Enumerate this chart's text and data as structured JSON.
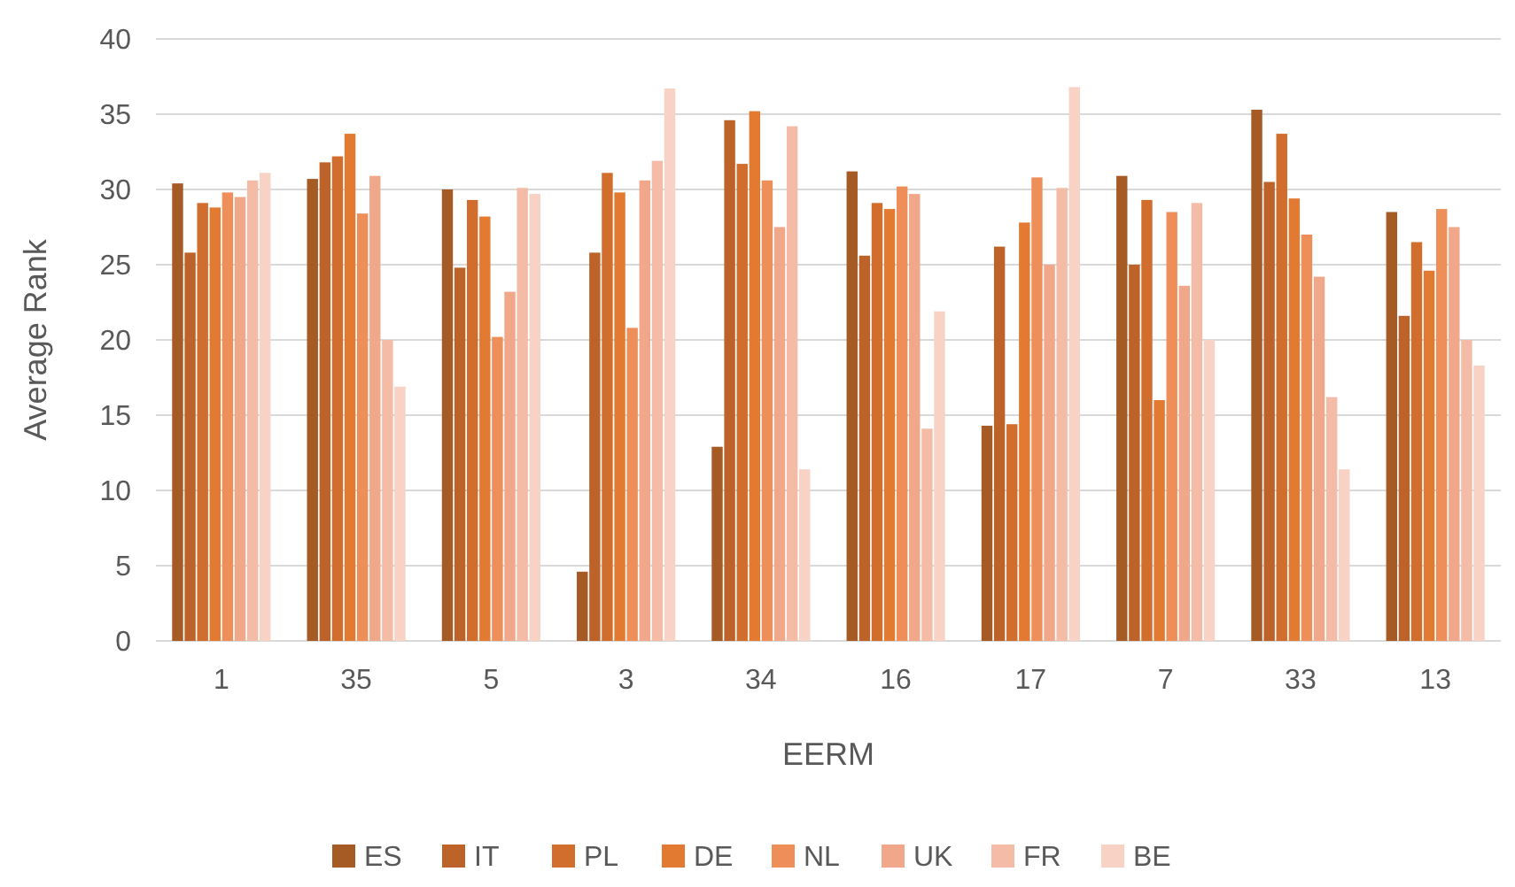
{
  "chart_data": {
    "type": "bar",
    "xlabel": "EERM",
    "ylabel": "Average Rank",
    "categories": [
      "1",
      "35",
      "5",
      "3",
      "34",
      "16",
      "17",
      "7",
      "33",
      "13"
    ],
    "ylim": [
      0,
      40
    ],
    "yticks": [
      0,
      5,
      10,
      15,
      20,
      25,
      30,
      35,
      40
    ],
    "grid": "y",
    "legend": "bottom",
    "series": [
      {
        "name": "ES",
        "color": "#a65a24",
        "values": [
          30.4,
          30.7,
          30,
          4.6,
          12.9,
          31.2,
          14.3,
          30.9,
          35.3,
          28.5
        ]
      },
      {
        "name": "IT",
        "color": "#bd6229",
        "values": [
          25.8,
          31.8,
          24.8,
          25.8,
          34.6,
          25.6,
          26.2,
          25,
          30.5,
          21.6
        ]
      },
      {
        "name": "PL",
        "color": "#d26e2d",
        "values": [
          29.1,
          32.2,
          29.3,
          31.1,
          31.7,
          29.1,
          14.4,
          29.3,
          33.7,
          26.5
        ]
      },
      {
        "name": "DE",
        "color": "#e27a32",
        "values": [
          28.8,
          33.7,
          28.2,
          29.8,
          35.2,
          28.7,
          27.8,
          16,
          29.4,
          24.6
        ]
      },
      {
        "name": "NL",
        "color": "#ee8f5a",
        "values": [
          29.8,
          28.4,
          20.2,
          20.8,
          30.6,
          30.2,
          30.8,
          28.5,
          27,
          28.7
        ]
      },
      {
        "name": "UK",
        "color": "#f1a789",
        "values": [
          29.5,
          30.9,
          23.2,
          30.6,
          27.5,
          29.7,
          25,
          23.6,
          24.2,
          27.5
        ]
      },
      {
        "name": "FR",
        "color": "#f4bca7",
        "values": [
          30.6,
          20,
          30.1,
          31.9,
          34.2,
          14.1,
          30.1,
          29.1,
          16.2,
          20
        ]
      },
      {
        "name": "BE",
        "color": "#f7d2c5",
        "values": [
          31.1,
          16.9,
          29.7,
          36.7,
          11.4,
          21.9,
          36.8,
          20,
          11.4,
          18.3
        ]
      }
    ]
  }
}
